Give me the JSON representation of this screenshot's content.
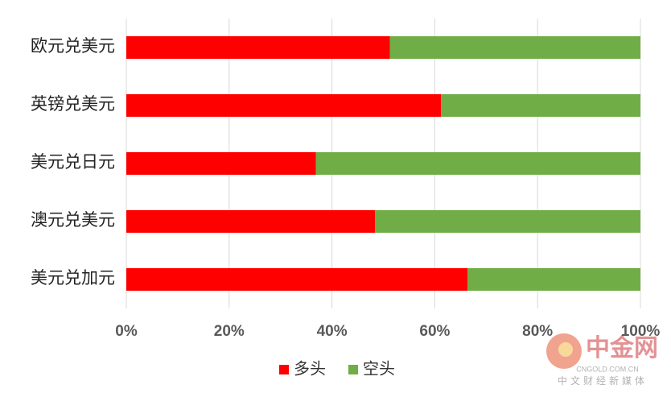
{
  "chart_data": {
    "type": "stacked_barh",
    "categories": [
      "欧元兑美元",
      "英镑兑美元",
      "美元兑日元",
      "澳元兑美元",
      "美元兑加元"
    ],
    "series": [
      {
        "name": "多头",
        "color": "#ff0000",
        "values": [
          51.3,
          61.2,
          36.9,
          48.4,
          66.4
        ]
      },
      {
        "name": "空头",
        "color": "#70ad47",
        "values": [
          48.7,
          38.8,
          63.1,
          51.6,
          33.6
        ]
      }
    ],
    "xlim": [
      0,
      100
    ],
    "xticks": [
      {
        "value": 0,
        "label": "0%"
      },
      {
        "value": 20,
        "label": "20%"
      },
      {
        "value": 40,
        "label": "40%"
      },
      {
        "value": 60,
        "label": "60%"
      },
      {
        "value": 80,
        "label": "80%"
      },
      {
        "value": 100,
        "label": "100%"
      }
    ],
    "grid": true,
    "legend": "bottom"
  },
  "watermark": {
    "logo": "中金网",
    "url": "CNGOLD.COM.CN",
    "slogan": "中文财经新媒体"
  }
}
